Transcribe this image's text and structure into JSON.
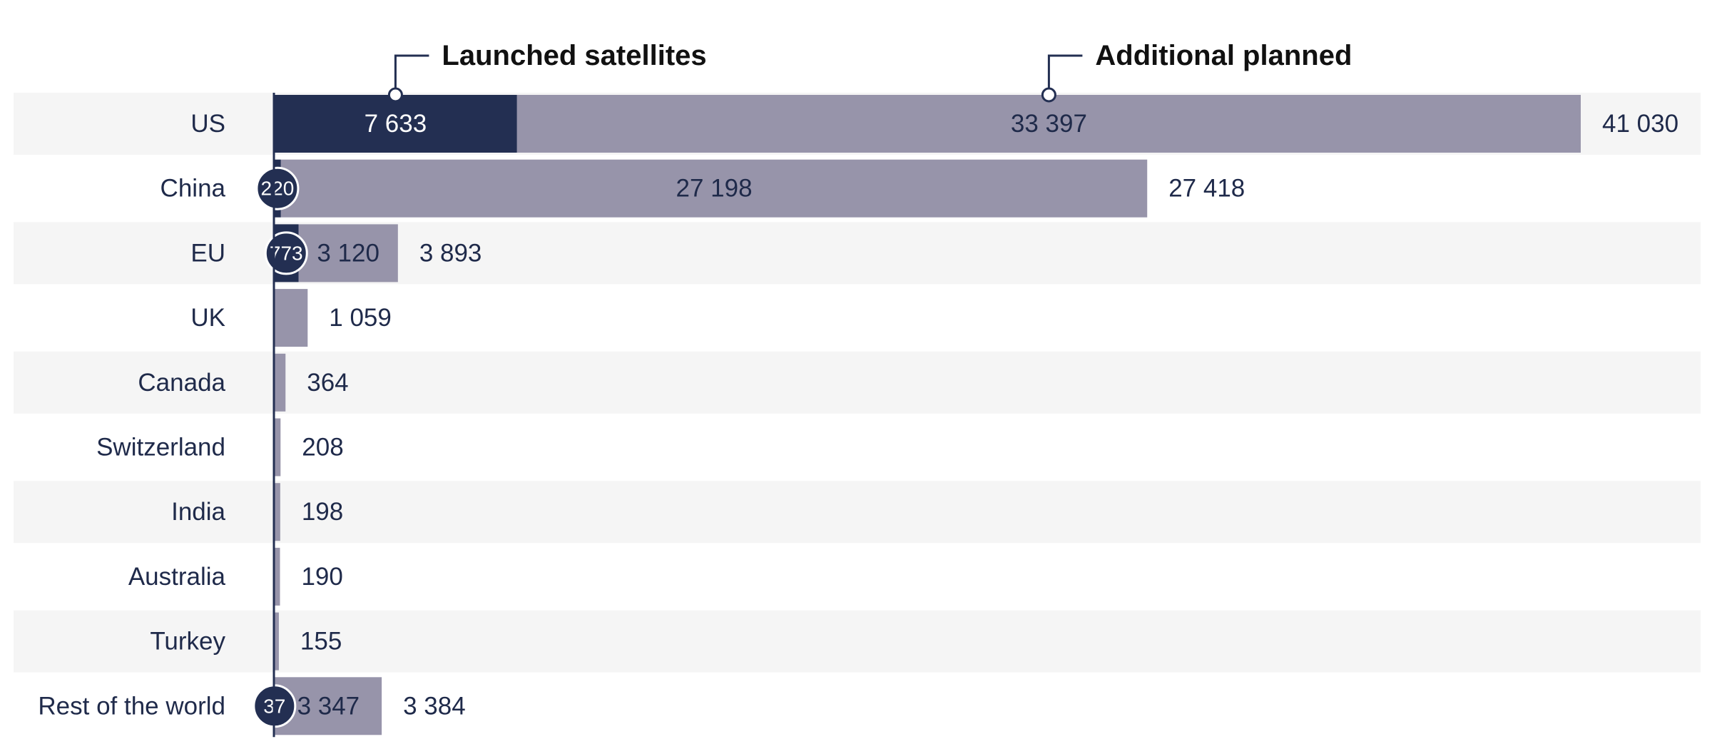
{
  "chart_data": {
    "type": "bar",
    "orientation": "horizontal",
    "stacked": true,
    "categories": [
      "US",
      "China",
      "EU",
      "UK",
      "Canada",
      "Switzerland",
      "India",
      "Australia",
      "Turkey",
      "Rest of the world"
    ],
    "series": [
      {
        "name": "Launched satellites",
        "color": "#232f52",
        "values": [
          7633,
          220,
          773,
          null,
          null,
          null,
          null,
          null,
          null,
          37
        ],
        "value_labels": [
          "7 633",
          "220",
          "773",
          null,
          null,
          null,
          null,
          null,
          null,
          "37"
        ]
      },
      {
        "name": "Additional planned",
        "color": "#9794aa",
        "values": [
          33397,
          27198,
          3120,
          1059,
          364,
          208,
          198,
          190,
          155,
          3347
        ],
        "value_labels": [
          "33 397",
          "27 198",
          "3 120",
          null,
          null,
          null,
          null,
          null,
          null,
          "3 347"
        ]
      }
    ],
    "totals": {
      "values": [
        41030,
        27418,
        3893,
        1059,
        364,
        208,
        198,
        190,
        155,
        3384
      ],
      "value_labels": [
        "41 030",
        "27 418",
        "3 893",
        "1 059",
        "364",
        "208",
        "198",
        "190",
        "155",
        "3 384"
      ]
    }
  }
}
